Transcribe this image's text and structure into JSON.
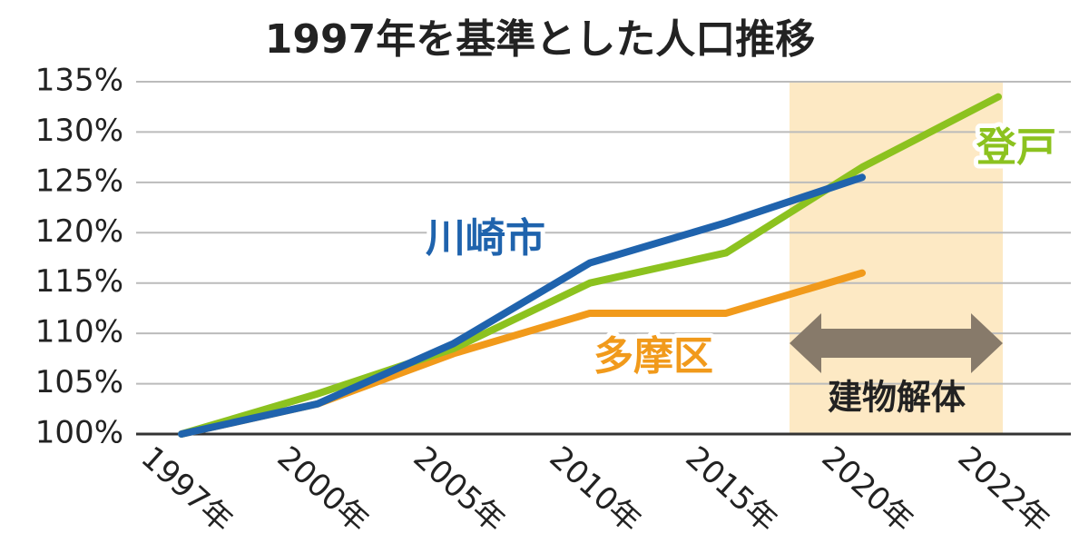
{
  "chart_data": {
    "type": "line",
    "title": "1997年を基準とした人口推移",
    "categories": [
      "1997年",
      "2000年",
      "2005年",
      "2010年",
      "2015年",
      "2020年",
      "2022年"
    ],
    "series": [
      {
        "name": "多摩区",
        "color": "#f19a1b",
        "values": [
          100,
          103,
          108,
          112,
          112,
          116,
          null
        ]
      },
      {
        "name": "登戸",
        "color": "#8cc21f",
        "values": [
          100,
          104,
          108.5,
          115,
          118,
          126.5,
          133.5
        ]
      },
      {
        "name": "川崎市",
        "color": "#1f63ad",
        "values": [
          100,
          103,
          109,
          117,
          121,
          125.5,
          null
        ]
      }
    ],
    "ylim": [
      100,
      135
    ],
    "yticks": [
      {
        "value": 100,
        "label": "100%"
      },
      {
        "value": 105,
        "label": "105%"
      },
      {
        "value": 110,
        "label": "110%"
      },
      {
        "value": 115,
        "label": "115%"
      },
      {
        "value": 120,
        "label": "120%"
      },
      {
        "value": 125,
        "label": "125%"
      },
      {
        "value": 130,
        "label": "130%"
      },
      {
        "value": 135,
        "label": "135%"
      }
    ],
    "grid": true,
    "annotations": [
      "建物解体"
    ]
  }
}
